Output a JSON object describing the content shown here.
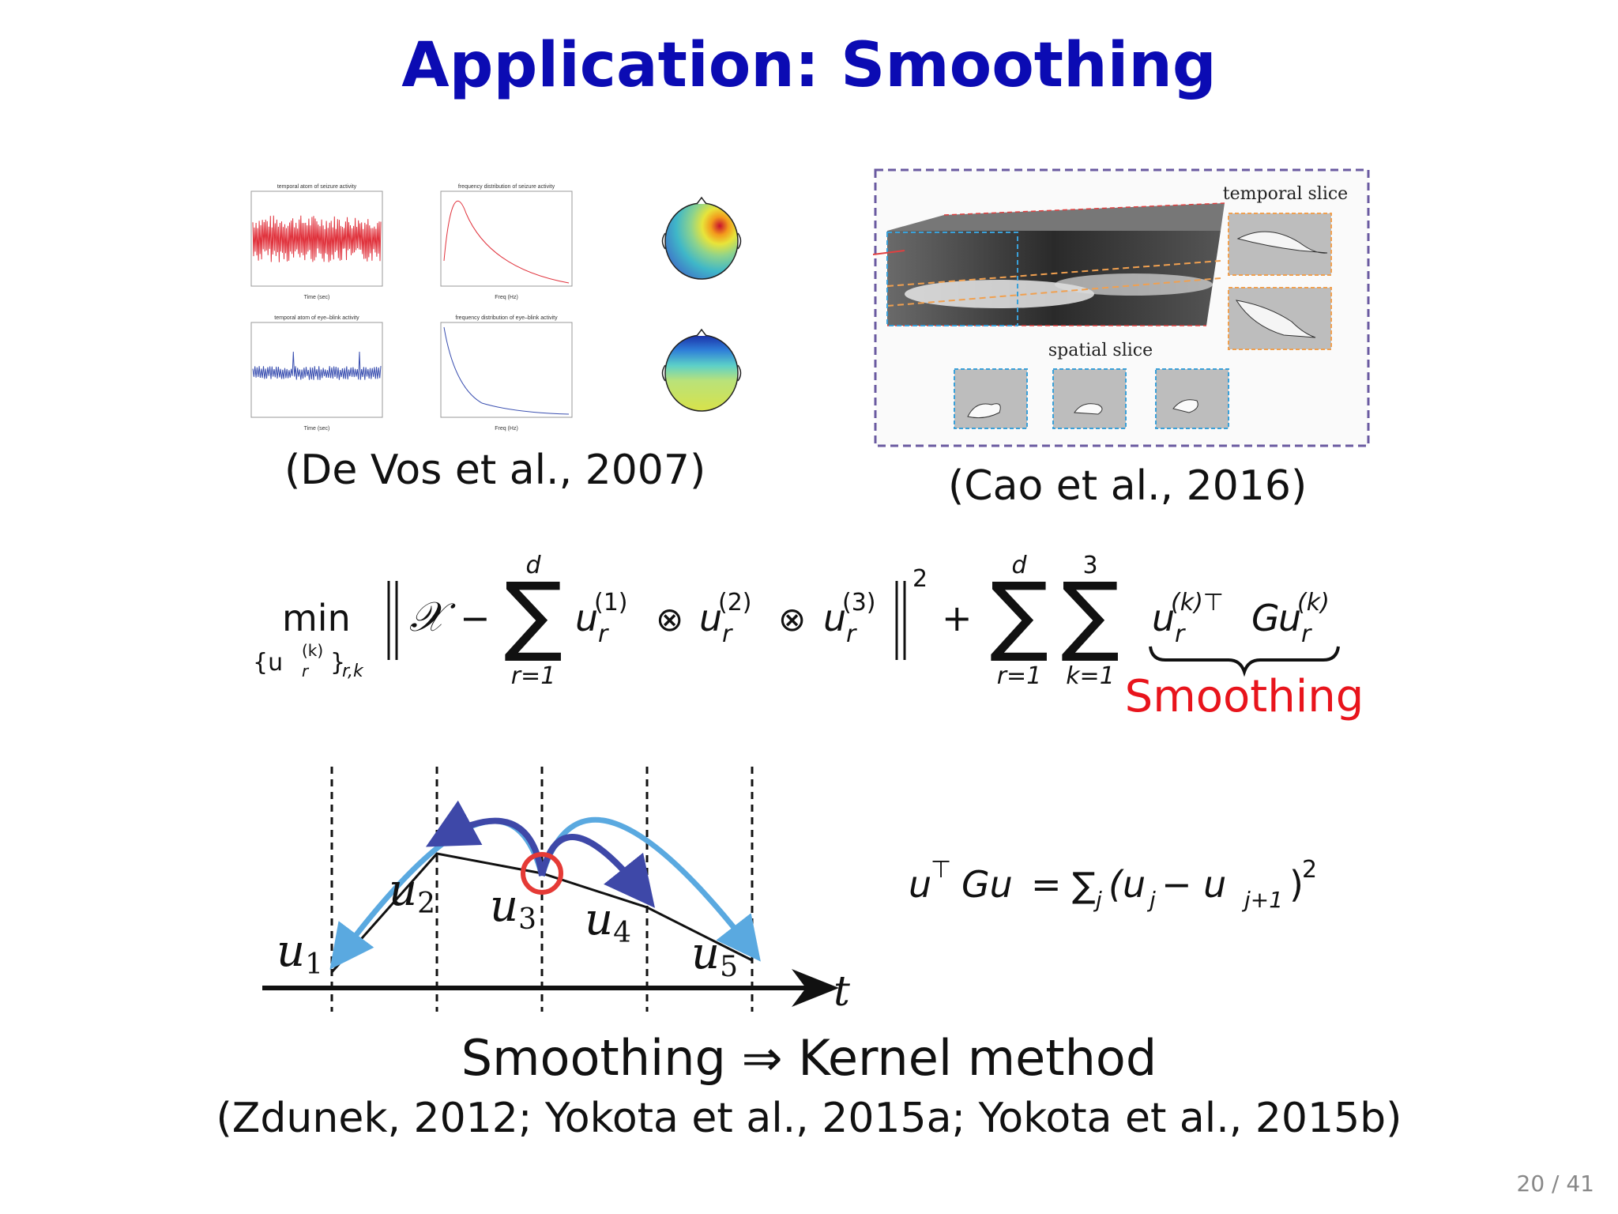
{
  "slide": {
    "title": "Application:  Smoothing",
    "page_number": "20 / 41"
  },
  "eeg_figure": {
    "caption": "(De  Vos et  al., 2007)",
    "plots": [
      {
        "title": "temporal atom  of seizure activity",
        "xlabel": "Time (sec)"
      },
      {
        "title": "frequency distribution of seizure activity",
        "xlabel": "Freq (Hz)"
      },
      {
        "title": "temporal atom  of eye–blink activity",
        "xlabel": "Time (sec)"
      },
      {
        "title": "frequency distribution of eye–blink activity",
        "xlabel": "Freq (Hz)"
      }
    ],
    "colors": {
      "seizure": "#e0323c",
      "eyeblink": "#3a4fb0"
    }
  },
  "video_figure": {
    "caption": "(Cao et  al., 2016)",
    "temporal_label": "temporal slice",
    "spatial_label": "spatial slice"
  },
  "formula": {
    "min": "min",
    "min_sub": "{u",
    "min_sub_sup": "(k)",
    "min_sub_sub": "r",
    "min_sub_tail": "}",
    "min_sub_idx": "r,k",
    "calX": "𝒳",
    "sum_top_d": "d",
    "sum_bottom_r1": "r=1",
    "sum_top_3": "3",
    "sum_bottom_k1": "k=1",
    "u": "u",
    "sup1": "(1)",
    "sup2": "(2)",
    "sup3": "(3)",
    "sub_r": "r",
    "otimes": "⊗",
    "minus": "−",
    "plus": "+",
    "norm_sq": "2",
    "reg_sup": "(k)⊤",
    "G": "G",
    "reg_sup2": "(k)",
    "smoothing_label": "Smoothing",
    "smoothing_color": "#e8141c"
  },
  "diagram": {
    "labels": [
      "u",
      "u",
      "u",
      "u",
      "u"
    ],
    "subscripts": [
      "1",
      "2",
      "3",
      "4",
      "5"
    ],
    "axis_label": "t",
    "colors": {
      "light_arrow": "#5aa9e0",
      "dark_arrow": "#3e48a8",
      "circle": "#e53a36"
    }
  },
  "quad_formula": {
    "lhs_u": "u",
    "lhs_T": "⊤",
    "lhs_Gu": "Gu",
    "eq": "=",
    "sum": "∑",
    "sum_sub": "j",
    "open": "(u",
    "sub_j": "j",
    "minus": " − u",
    "sub_j1": "j+1",
    "close": ")",
    "power": "2"
  },
  "bottom": {
    "line1_left": "Smoothing",
    "line1_arrow": "⇒",
    "line1_right": "Kernel method",
    "line2": "(Zdunek, 2012; Yokota et  al., 2015a; Yokota et  al., 2015b)"
  }
}
